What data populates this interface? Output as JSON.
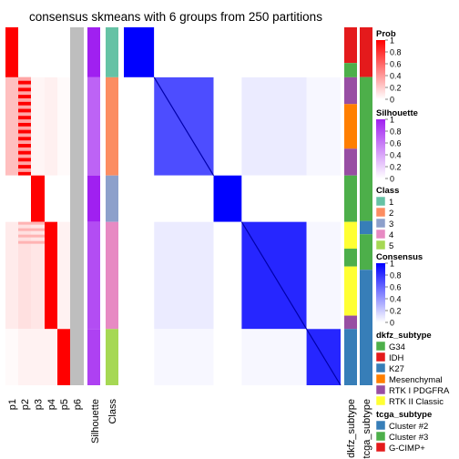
{
  "chart_data": {
    "type": "heatmap",
    "title": "consensus skmeans with 6 groups from 250 partitions",
    "membership_columns": [
      "p1",
      "p2",
      "p3",
      "p4",
      "p5",
      "p6"
    ],
    "annotation_columns": [
      "Silhouette",
      "Class"
    ],
    "side_annotation_columns": [
      "dkfz_subtype",
      "tcga_subtype"
    ],
    "blocks": [
      {
        "class": "1",
        "rows": 56,
        "membership": "p1",
        "silhouette": 1.0
      },
      {
        "class": "2",
        "rows": 110,
        "membership": "p2",
        "silhouette": 0.7
      },
      {
        "class": "3",
        "rows": 52,
        "membership": "p3",
        "silhouette": 1.0
      },
      {
        "class": "4",
        "rows": 120,
        "membership": "p4",
        "silhouette": 0.8
      },
      {
        "class": "5",
        "rows": 63,
        "membership": "p5",
        "silhouette": 0.85
      }
    ],
    "legends": {
      "prob": {
        "title": "Prob",
        "ticks": [
          "1",
          "0.8",
          "0.6",
          "0.4",
          "0.2",
          "0"
        ],
        "low": "#ffffff",
        "high": "#ff0000"
      },
      "silhouette": {
        "title": "Silhouette",
        "ticks": [
          "1",
          "0.8",
          "0.6",
          "0.4",
          "0.2",
          "0"
        ],
        "low": "#ffffff",
        "high": "#a020f0"
      },
      "class": {
        "title": "Class",
        "items": [
          {
            "label": "1",
            "color": "#66c2a5"
          },
          {
            "label": "2",
            "color": "#fc8d62"
          },
          {
            "label": "3",
            "color": "#8da0cb"
          },
          {
            "label": "4",
            "color": "#e78ac3"
          },
          {
            "label": "5",
            "color": "#a6d854"
          }
        ]
      },
      "consensus": {
        "title": "Consensus",
        "ticks": [
          "1",
          "0.8",
          "0.6",
          "0.4",
          "0.2",
          "0"
        ],
        "low": "#ffffff",
        "high": "#0000ff"
      },
      "dkfz_subtype": {
        "title": "dkfz_subtype",
        "items": [
          {
            "label": "G34",
            "color": "#4daf4a"
          },
          {
            "label": "IDH",
            "color": "#e41a1c"
          },
          {
            "label": "K27",
            "color": "#377eb8"
          },
          {
            "label": "Mesenchymal",
            "color": "#ff7f00"
          },
          {
            "label": "RTK I PDGFRA",
            "color": "#984ea3"
          },
          {
            "label": "RTK II Classic",
            "color": "#ffff33"
          }
        ]
      },
      "tcga_subtype": {
        "title": "tcga_subtype",
        "items": [
          {
            "label": "Cluster #2",
            "color": "#377eb8"
          },
          {
            "label": "Cluster #3",
            "color": "#4daf4a"
          },
          {
            "label": "G-CIMP+",
            "color": "#e41a1c"
          }
        ]
      }
    },
    "colors": {
      "p6_gray": "#bebebe",
      "prob": "#ff0000",
      "silhouette": "#a020f0",
      "consensus": "#0000ff"
    }
  }
}
